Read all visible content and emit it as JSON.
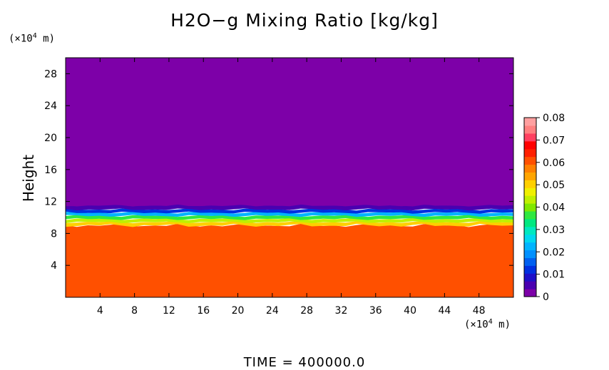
{
  "title": "H2O−g Mixing Ratio [kg/kg]",
  "footer": "TIME  =  400000.0",
  "chart_data": {
    "type": "heatmap",
    "title": "H2O−g Mixing Ratio [kg/kg]",
    "ylabel": "Height",
    "xlabel": "",
    "x_unit": {
      "prefix": "(×10",
      "exp": "4",
      "suffix": " m)"
    },
    "y_unit": {
      "prefix": "(×10",
      "exp": "4",
      "suffix": " m)"
    },
    "xlim": [
      0,
      52
    ],
    "ylim": [
      0,
      30
    ],
    "x_ticks": [
      4,
      8,
      12,
      16,
      20,
      24,
      28,
      32,
      36,
      40,
      44,
      48
    ],
    "y_ticks": [
      4,
      8,
      12,
      16,
      20,
      24,
      28
    ],
    "colorbar": {
      "range": [
        0,
        0.08
      ],
      "ticks": [
        "0",
        "0.01",
        "0.02",
        "0.03",
        "0.04",
        "0.05",
        "0.06",
        "0.07",
        "0.08"
      ],
      "colors": [
        "#7d00a8",
        "#4a00b0",
        "#1e10c8",
        "#0030e0",
        "#0060f0",
        "#0090ff",
        "#00b4ff",
        "#00d8f0",
        "#00e8c0",
        "#00e880",
        "#30e840",
        "#80e800",
        "#c0f000",
        "#f0f000",
        "#ffd000",
        "#ffa500",
        "#ff8000",
        "#ff5000",
        "#ff2000",
        "#ff0000",
        "#ff4060",
        "#ff8080",
        "#ffa0a0"
      ]
    },
    "field": {
      "upper_value": 0.0,
      "lower_value": 0.06,
      "layers": [
        {
          "from": 0.0,
          "to": 9.0,
          "value": 0.06
        },
        {
          "from": 9.0,
          "to": 9.4,
          "value": 0.052
        },
        {
          "from": 9.4,
          "to": 9.8,
          "value": 0.045
        },
        {
          "from": 9.8,
          "to": 10.2,
          "value": 0.035
        },
        {
          "from": 10.2,
          "to": 10.6,
          "value": 0.022
        },
        {
          "from": 10.6,
          "to": 11.0,
          "value": 0.012
        },
        {
          "from": 11.0,
          "to": 11.5,
          "value": 0.005
        },
        {
          "from": 11.5,
          "to": 30.0,
          "value": 0.0
        }
      ]
    }
  }
}
